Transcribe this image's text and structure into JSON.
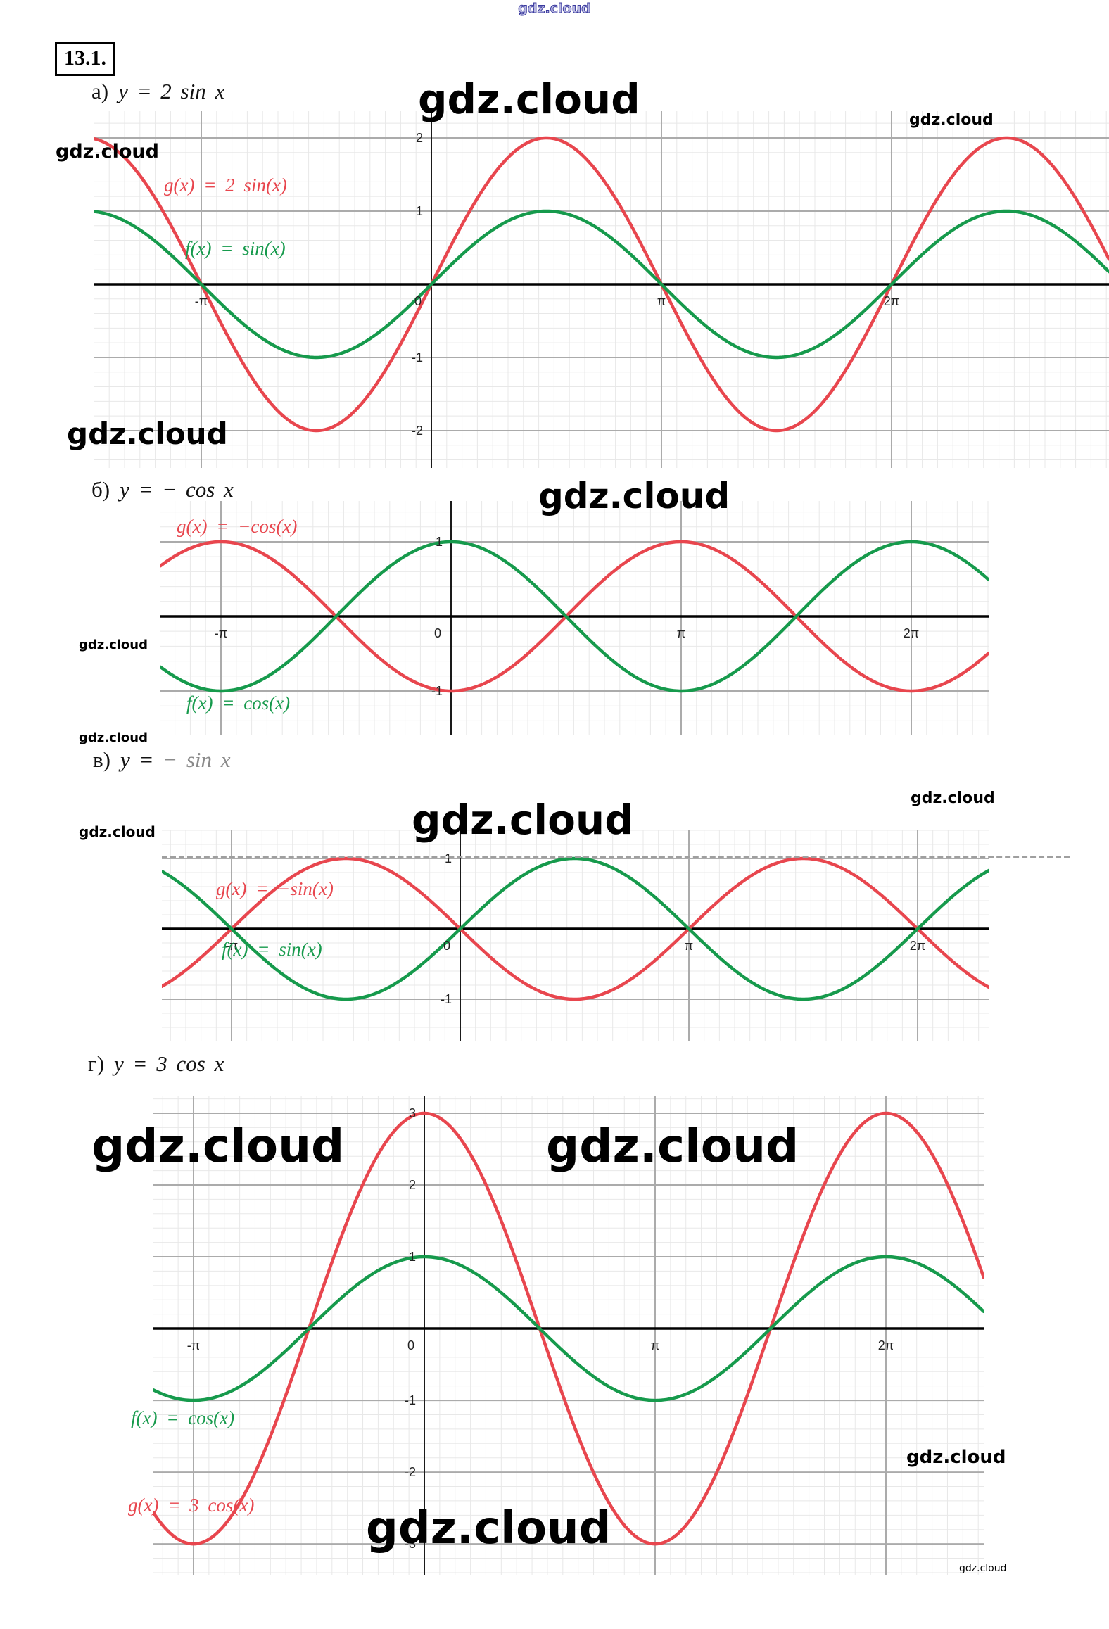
{
  "watermark_text": "gdz.cloud",
  "problem_number": "13.1.",
  "sections": [
    {
      "label": "а)",
      "formula": "y = 2 sin x",
      "formula_faded": ""
    },
    {
      "label": "б)",
      "formula": "y = − cos x",
      "formula_faded": ""
    },
    {
      "label": "в)",
      "formula": "y = ",
      "formula_faded": "− sin x"
    },
    {
      "label": "г)",
      "formula": "y = 3 cos x",
      "formula_faded": ""
    }
  ],
  "chart_data": [
    {
      "type": "line",
      "title": "а) y = 2 sin x",
      "xlabel": "",
      "ylabel": "",
      "x_units": "pi_radians",
      "xmin_pi": -1.4679,
      "xmax_pi": 2.945,
      "ymin": -2.51,
      "ymax": 2.365,
      "grid": {
        "minor_x_pi": 0.066667,
        "minor_y": 0.2,
        "major_x_pi": 1,
        "major_y": 1,
        "on": true
      },
      "x_ticks": [
        {
          "value_pi": -1,
          "label": "-π"
        },
        {
          "value_pi": 0,
          "label": "0"
        },
        {
          "value_pi": 1,
          "label": "π"
        },
        {
          "value_pi": 2,
          "label": "2π"
        }
      ],
      "y_ticks": [
        {
          "value": 2,
          "label": "2"
        },
        {
          "value": 1,
          "label": "1"
        },
        {
          "value": -1,
          "label": "-1"
        },
        {
          "value": -2,
          "label": "-2"
        }
      ],
      "series": [
        {
          "name": "g(x) = 2 sin(x)",
          "fn": "sin",
          "amplitude": 2,
          "color": "#e8464e"
        },
        {
          "name": "f(x) = sin(x)",
          "fn": "sin",
          "amplitude": 1,
          "color": "#169a4c"
        }
      ],
      "legend_position": "inside-left"
    },
    {
      "type": "line",
      "title": "б) y = − cos x",
      "xlabel": "",
      "ylabel": "",
      "x_units": "pi_radians",
      "xmin_pi": -1.263,
      "xmax_pi": 2.3364,
      "ymin": -1.585,
      "ymax": 1.547,
      "grid": {
        "minor_x_pi": 0.066667,
        "minor_y": 0.2,
        "major_x_pi": 1,
        "major_y": 1,
        "on": true
      },
      "x_ticks": [
        {
          "value_pi": -1,
          "label": "-π"
        },
        {
          "value_pi": 0,
          "label": "0"
        },
        {
          "value_pi": 1,
          "label": "π"
        },
        {
          "value_pi": 2,
          "label": "2π"
        }
      ],
      "y_ticks": [
        {
          "value": 1,
          "label": "1"
        },
        {
          "value": -1,
          "label": "-1"
        }
      ],
      "series": [
        {
          "name": "g(x) = −cos(x)",
          "fn": "cos",
          "amplitude": -1,
          "color": "#e8464e"
        },
        {
          "name": "f(x) = cos(x)",
          "fn": "cos",
          "amplitude": 1,
          "color": "#169a4c"
        }
      ],
      "legend_position": "inside-left"
    },
    {
      "type": "line",
      "title": "в) y = − sin x",
      "xlabel": "",
      "ylabel": "",
      "x_units": "pi_radians",
      "xmin_pi": -1.3046,
      "xmax_pi": 2.3138,
      "ymin": -1.6,
      "ymax": 1.4,
      "grid": {
        "minor_x_pi": 0.066667,
        "minor_y": 0.2,
        "major_x_pi": 1,
        "major_y": 1,
        "on": true
      },
      "dashed_guide_y": 1,
      "x_ticks": [
        {
          "value_pi": -1,
          "label": "-π"
        },
        {
          "value_pi": 0,
          "label": "0"
        },
        {
          "value_pi": 1,
          "label": "π"
        },
        {
          "value_pi": 2,
          "label": "2π"
        }
      ],
      "y_ticks": [
        {
          "value": 1,
          "label": "1"
        },
        {
          "value": -1,
          "label": "-1"
        }
      ],
      "series": [
        {
          "name": "g(x) = −sin(x)",
          "fn": "sin",
          "amplitude": -1,
          "color": "#e8464e"
        },
        {
          "name": "f(x) = sin(x)",
          "fn": "sin",
          "amplitude": 1,
          "color": "#169a4c"
        }
      ],
      "legend_position": "inside-left"
    },
    {
      "type": "line",
      "title": "г) y = 3 cos x",
      "xlabel": "",
      "ylabel": "",
      "x_units": "pi_radians",
      "xmin_pi": -1.1738,
      "xmax_pi": 2.4238,
      "ymin": -3.43,
      "ymax": 3.235,
      "grid": {
        "minor_x_pi": 0.066667,
        "minor_y": 0.2,
        "major_x_pi": 1,
        "major_y": 1,
        "on": true
      },
      "x_ticks": [
        {
          "value_pi": -1,
          "label": "-π"
        },
        {
          "value_pi": 0,
          "label": "0"
        },
        {
          "value_pi": 1,
          "label": "π"
        },
        {
          "value_pi": 2,
          "label": "2π"
        }
      ],
      "y_ticks": [
        {
          "value": 3,
          "label": "3"
        },
        {
          "value": 2,
          "label": "2"
        },
        {
          "value": 1,
          "label": "1"
        },
        {
          "value": -1,
          "label": "-1"
        },
        {
          "value": -2,
          "label": "-2"
        },
        {
          "value": -3,
          "label": "-3"
        }
      ],
      "series": [
        {
          "name": "g(x) = 3 cos(x)",
          "fn": "cos",
          "amplitude": 3,
          "color": "#e8464e"
        },
        {
          "name": "f(x) = cos(x)",
          "fn": "cos",
          "amplitude": 1,
          "color": "#169a4c"
        }
      ],
      "legend_position": "inside-left"
    }
  ]
}
